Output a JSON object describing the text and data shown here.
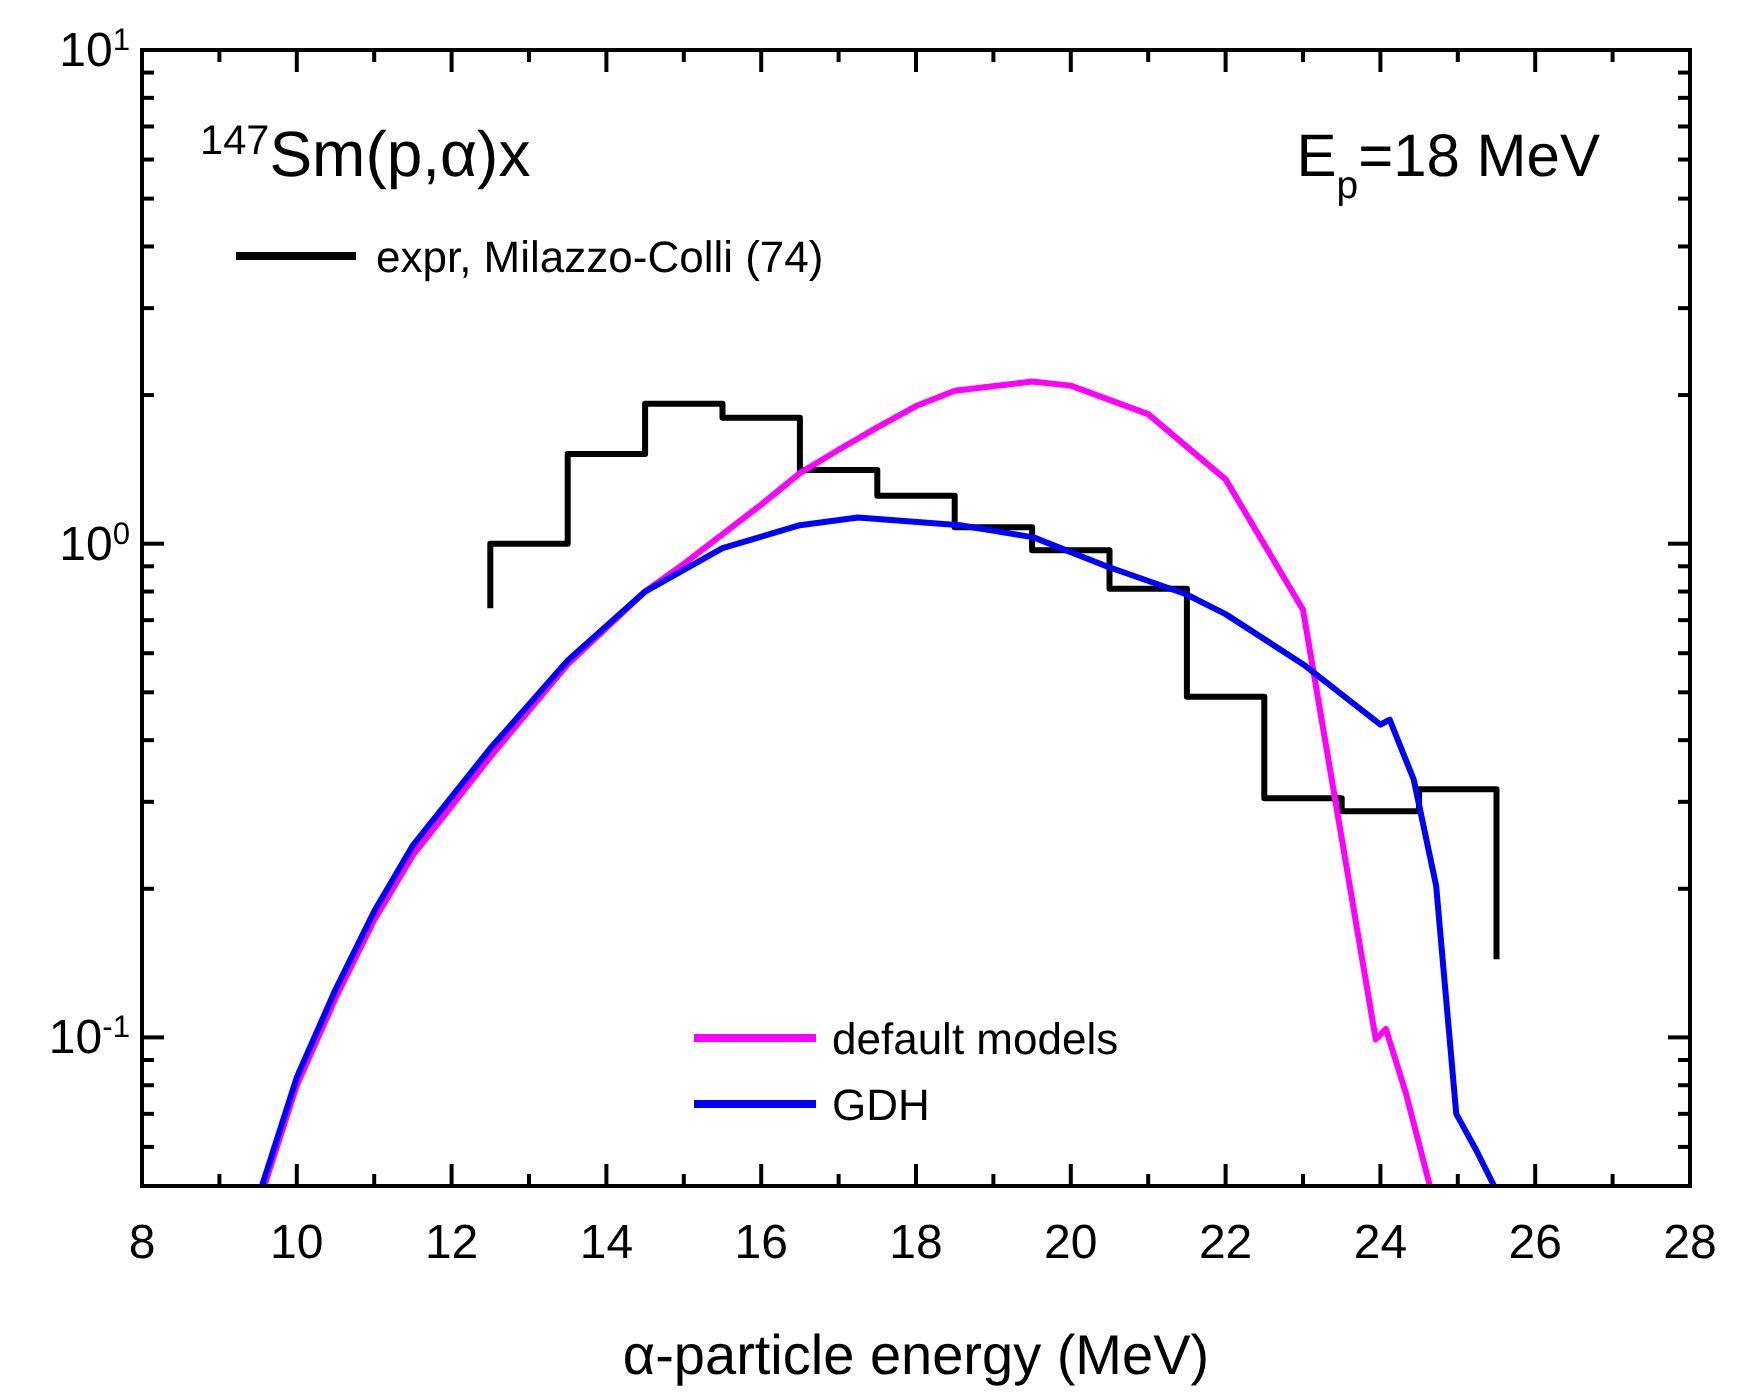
{
  "chart_data": {
    "type": "line",
    "title": "$^{147}$Sm(p,α)x",
    "xlabel": "α-particle energy (MeV)",
    "annotations": [
      "E$_{p}$=18 MeV"
    ],
    "xlim": [
      8,
      28
    ],
    "xticks": [
      8,
      {
        "value": 9,
        "label": null
      },
      10,
      {
        "value": 11,
        "label": null
      },
      12,
      {
        "value": 13,
        "label": null
      },
      14,
      {
        "value": 15,
        "label": null
      },
      16,
      {
        "value": 17,
        "label": null
      },
      18,
      {
        "value": 19,
        "label": null
      },
      20,
      {
        "value": 21,
        "label": null
      },
      22,
      {
        "value": 23,
        "label": null
      },
      24,
      {
        "value": 25,
        "label": null
      },
      26,
      {
        "value": 27,
        "label": null
      },
      28
    ],
    "ylim": [
      0.05,
      10
    ],
    "yticks": [
      {
        "value": 0.05,
        "label": null
      },
      {
        "value": 0.06,
        "label": null
      },
      {
        "value": 0.07,
        "label": null
      },
      {
        "value": 0.08,
        "label": null
      },
      {
        "value": 0.09,
        "label": null
      },
      {
        "value": 0.1,
        "label": "10$^{-1}$"
      },
      {
        "value": 0.2,
        "label": null
      },
      {
        "value": 0.3,
        "label": null
      },
      {
        "value": 0.4,
        "label": null
      },
      {
        "value": 0.5,
        "label": null
      },
      {
        "value": 0.6,
        "label": null
      },
      {
        "value": 0.7,
        "label": null
      },
      {
        "value": 0.8,
        "label": null
      },
      {
        "value": 0.9,
        "label": null
      },
      {
        "value": 1,
        "label": "10$^{0}$"
      },
      {
        "value": 2,
        "label": null
      },
      {
        "value": 3,
        "label": null
      },
      {
        "value": 4,
        "label": null
      },
      {
        "value": 5,
        "label": null
      },
      {
        "value": 6,
        "label": null
      },
      {
        "value": 7,
        "label": null
      },
      {
        "value": 8,
        "label": null
      },
      {
        "value": 9,
        "label": null
      },
      {
        "value": 10,
        "label": "10$^{1}$"
      }
    ],
    "log": "y",
    "grid": false,
    "legend": "left",
    "marker": "none",
    "line_style": "solid",
    "series": [
      {
        "type": "step",
        "name": "expr, Milazzo-Colli (74)",
        "color": "#000000",
        "x": [
          12.5,
          12.5,
          13.5,
          14.5,
          15.5,
          16.5,
          17.5,
          18.5,
          19.5,
          20.5,
          21.5,
          22.5,
          23.5,
          24.5,
          25.5
        ],
        "values": [
          0.74,
          1.0,
          1.52,
          1.92,
          1.8,
          1.41,
          1.25,
          1.08,
          0.97,
          0.81,
          0.49,
          0.305,
          0.287,
          0.318,
          0.144
        ]
      },
      {
        "type": "line",
        "name": "default models",
        "color": "#ff00ff",
        "x": [
          9.58,
          10,
          10.5,
          11,
          11.5,
          12.5,
          13.5,
          14.5,
          15,
          16,
          16.5,
          17,
          17.5,
          18,
          18.5,
          19.5,
          20,
          21,
          22,
          23,
          23.2,
          23.94,
          24.07,
          24.33,
          24.64
        ],
        "values": [
          0.05,
          0.08,
          0.12,
          0.173,
          0.234,
          0.37,
          0.57,
          0.8,
          0.91,
          1.2,
          1.39,
          1.55,
          1.72,
          1.9,
          2.04,
          2.13,
          2.09,
          1.83,
          1.35,
          0.735,
          0.48,
          0.099,
          0.104,
          0.077,
          0.05
        ]
      },
      {
        "type": "line",
        "name": "GDH",
        "color": "#0000ff",
        "x": [
          9.55,
          10,
          10.5,
          11,
          11.5,
          12.5,
          13.5,
          14.5,
          15.5,
          16.5,
          17.25,
          18.57,
          19.52,
          20.46,
          21.49,
          22,
          23,
          24,
          24.12,
          24.43,
          24.72,
          24.98,
          25.24,
          25.47
        ],
        "values": [
          0.05,
          0.083,
          0.125,
          0.18,
          0.245,
          0.385,
          0.58,
          0.8,
          0.98,
          1.09,
          1.13,
          1.09,
          1.03,
          0.9,
          0.79,
          0.72,
          0.57,
          0.43,
          0.44,
          0.333,
          0.203,
          0.07,
          0.059,
          0.05
        ]
      }
    ]
  }
}
